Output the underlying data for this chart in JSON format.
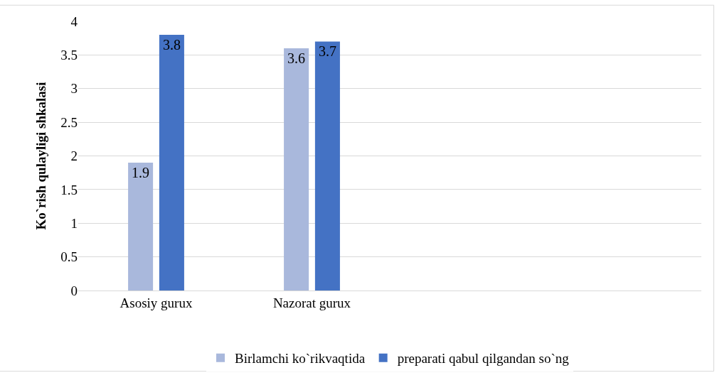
{
  "chart_data": {
    "type": "bar",
    "ylabel": "Ko`rish qulayligi shkalasi",
    "categories": [
      "Asosiy gurux",
      "Nazorat gurux",
      null,
      null
    ],
    "series": [
      {
        "name": "Birlamchi ko`rikvaqtida",
        "color": "#a9b8dc",
        "values": [
          1.9,
          3.6,
          null,
          null
        ]
      },
      {
        "name": "preparati qabul qilgandan so`ng",
        "color": "#4472c4",
        "values": [
          3.8,
          3.7,
          null,
          null
        ]
      }
    ],
    "ylim": [
      0,
      4
    ],
    "yticks": [
      0,
      0.5,
      1,
      1.5,
      2,
      2.5,
      3,
      3.5,
      4
    ],
    "grid": "y",
    "legend": "bottom",
    "data_labels": true
  }
}
